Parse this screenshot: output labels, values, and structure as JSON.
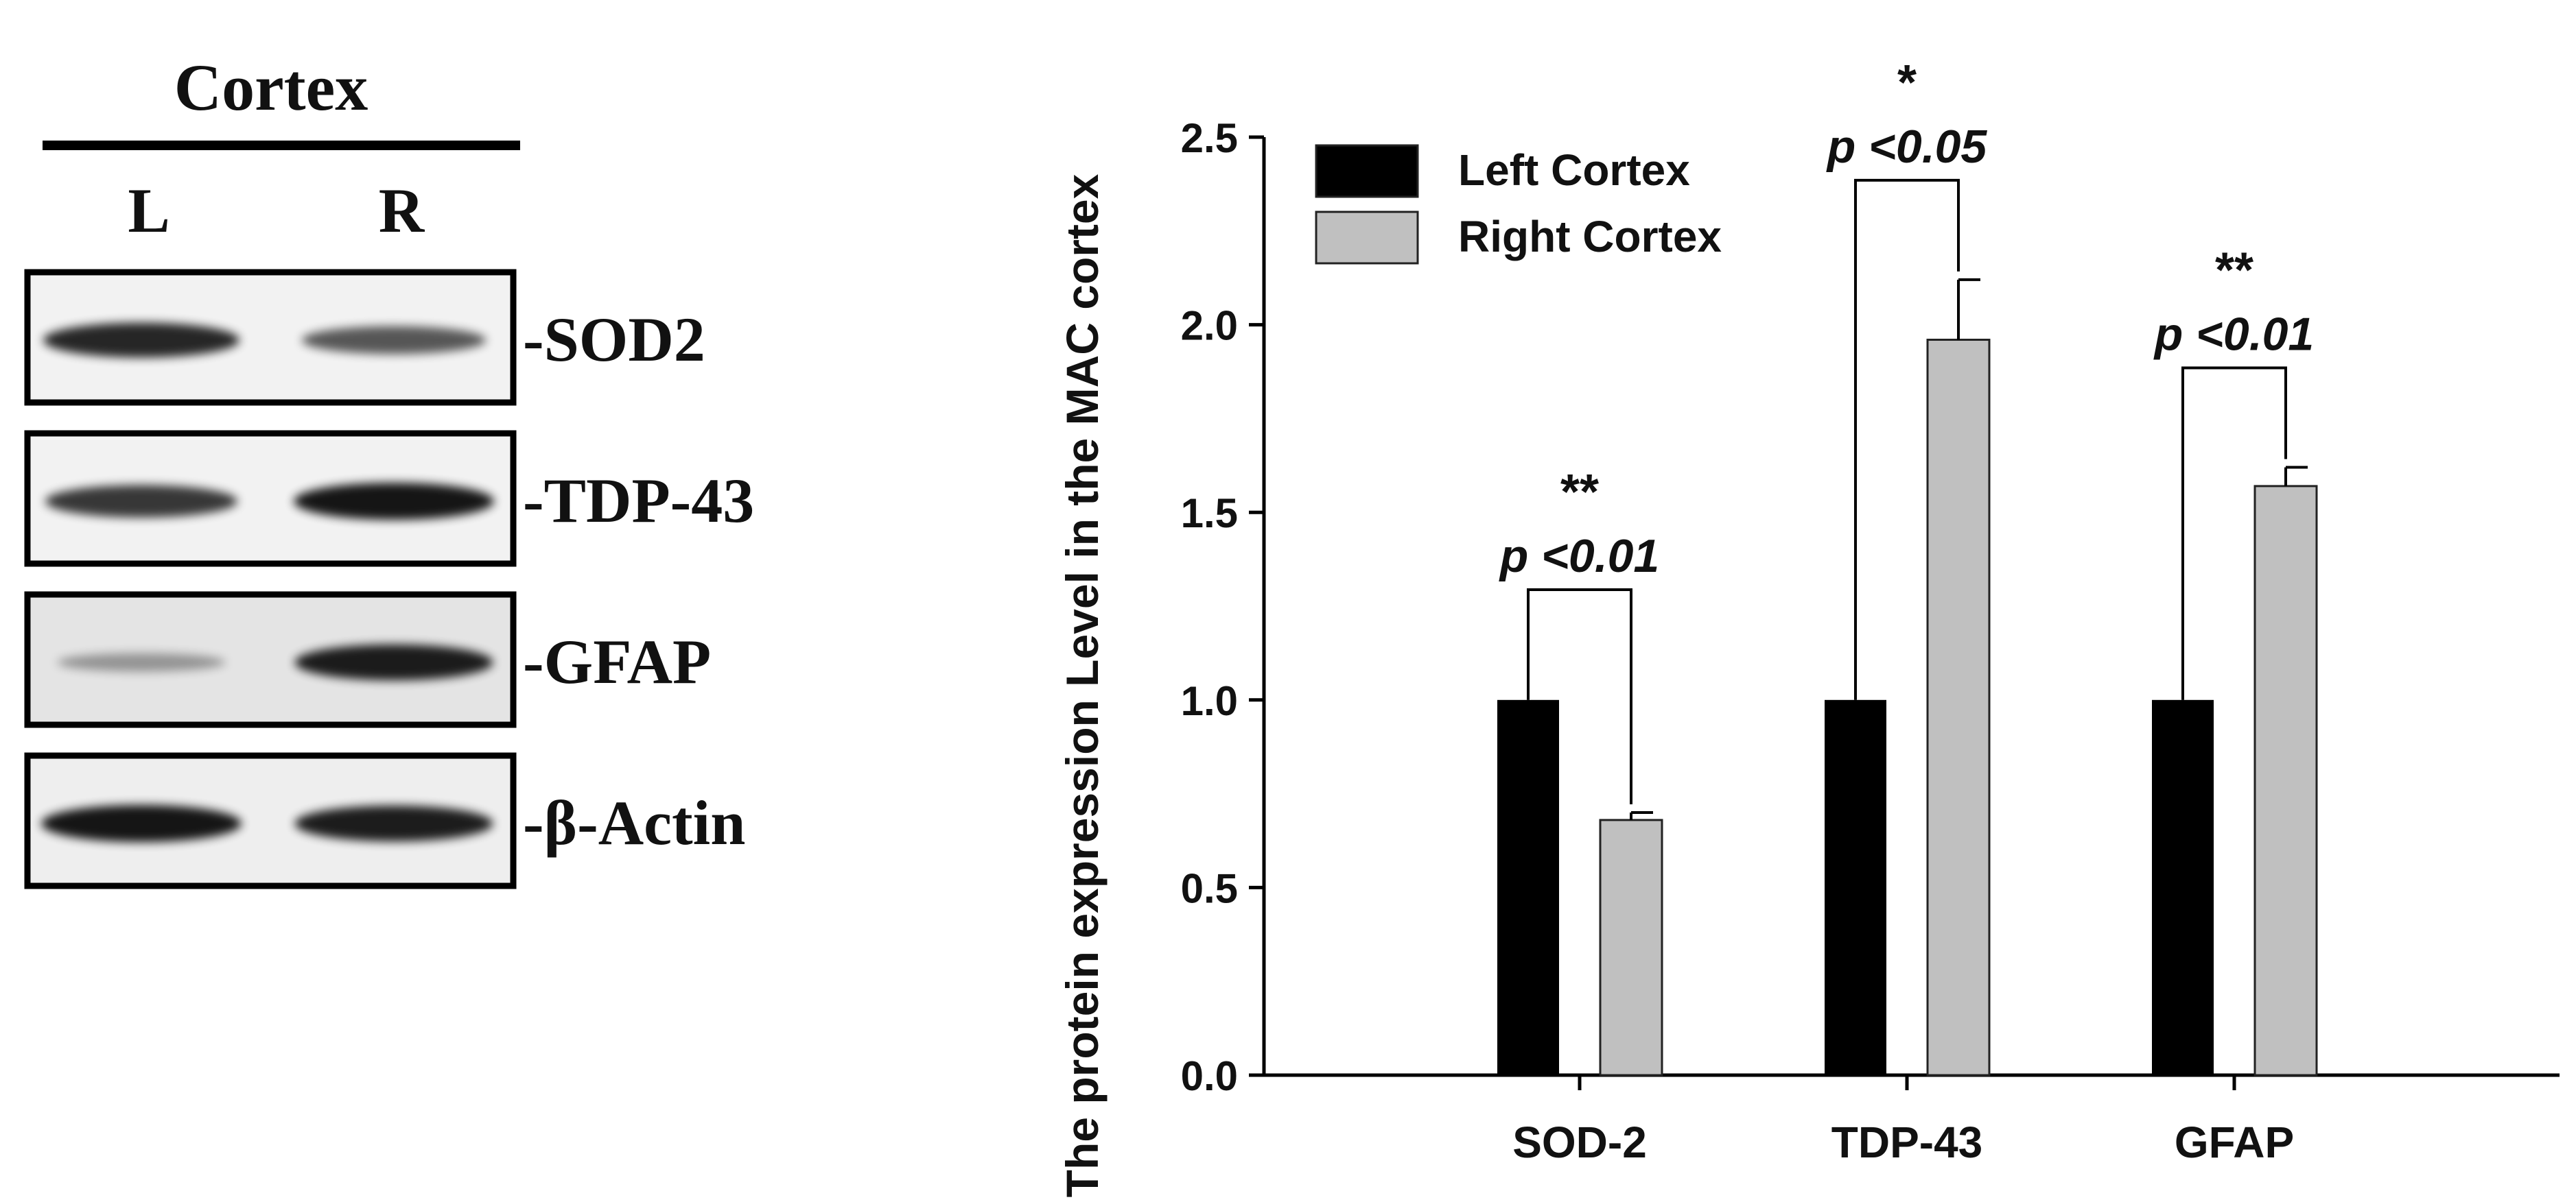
{
  "blot": {
    "header": "Cortex",
    "lanes": [
      "L",
      "R"
    ],
    "rows": [
      {
        "label": "-SOD2",
        "intensity": [
          0.85,
          0.55
        ],
        "background": "#f2f2f2"
      },
      {
        "label": "-TDP-43",
        "intensity": [
          0.75,
          0.95
        ],
        "background": "#f2f2f2"
      },
      {
        "label": "-GFAP",
        "intensity": [
          0.15,
          0.9
        ],
        "background": "#e4e4e4"
      },
      {
        "label": "-β-Actin",
        "intensity": [
          0.95,
          0.9
        ],
        "background": "#eeeeee"
      }
    ]
  },
  "chart_data": {
    "type": "bar",
    "title": "",
    "xlabel": "",
    "ylabel": "The protein expression Level in the MAC cortex",
    "ylim": [
      0,
      2.5
    ],
    "yticks": [
      "0.0",
      "0.5",
      "1.0",
      "1.5",
      "2.0",
      "2.5"
    ],
    "categories": [
      "SOD-2",
      "TDP-43",
      "GFAP"
    ],
    "series": [
      {
        "name": "Left Cortex",
        "color": "#000000",
        "values": [
          1.0,
          1.0,
          1.0
        ],
        "errors": [
          0,
          0,
          0
        ]
      },
      {
        "name": "Right Cortex",
        "color": "#c0c0c0",
        "values": [
          0.68,
          1.96,
          1.57
        ],
        "errors": [
          0.02,
          0.16,
          0.05
        ]
      }
    ],
    "legend_position": "top-left",
    "annotations": [
      {
        "category": "SOD-2",
        "stars": "**",
        "p_text": "p <0.01"
      },
      {
        "category": "TDP-43",
        "stars": "*",
        "p_text": "p <0.05"
      },
      {
        "category": "GFAP",
        "stars": "**",
        "p_text": "p <0.01"
      }
    ]
  }
}
